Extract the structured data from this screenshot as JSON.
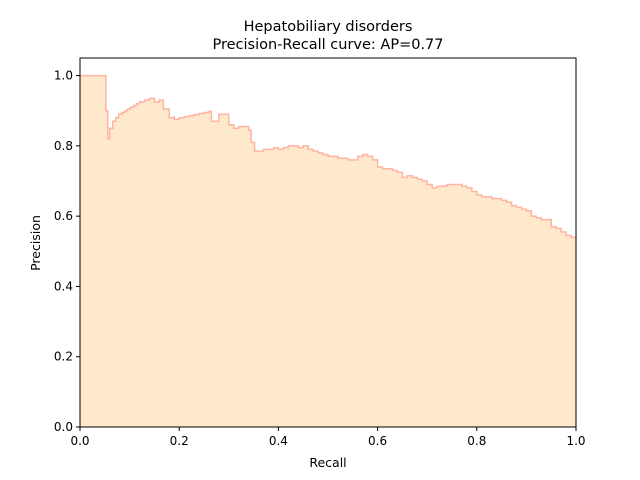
{
  "chart_data": {
    "type": "area",
    "title": "Hepatobiliary disorders",
    "subtitle": "Precision-Recall curve: AP=0.77",
    "xlabel": "Recall",
    "ylabel": "Precision",
    "xlim": [
      0.0,
      1.0
    ],
    "ylim": [
      0.0,
      1.05
    ],
    "xticks": [
      "0.0",
      "0.2",
      "0.4",
      "0.6",
      "0.8",
      "1.0"
    ],
    "yticks": [
      "0.0",
      "0.2",
      "0.4",
      "0.6",
      "0.8",
      "1.0"
    ],
    "grid": false,
    "legend": "none",
    "step": "post",
    "fill_color": "#ffe9cc",
    "line_color": "#ffb3a3",
    "series": [
      {
        "x": [
          0.0,
          0.052,
          0.052,
          0.056,
          0.056,
          0.06,
          0.06,
          0.066,
          0.066,
          0.072,
          0.078,
          0.084,
          0.09,
          0.096,
          0.102,
          0.108,
          0.114,
          0.12,
          0.13,
          0.14,
          0.15,
          0.16,
          0.168,
          0.168,
          0.18,
          0.18,
          0.19,
          0.19,
          0.2,
          0.2,
          0.21,
          0.22,
          0.23,
          0.24,
          0.25,
          0.26,
          0.265,
          0.265,
          0.28,
          0.28,
          0.3,
          0.3,
          0.31,
          0.31,
          0.32,
          0.32,
          0.34,
          0.34,
          0.345,
          0.345,
          0.352,
          0.352,
          0.37,
          0.39,
          0.4,
          0.41,
          0.42,
          0.43,
          0.44,
          0.45,
          0.46,
          0.47,
          0.48,
          0.49,
          0.5,
          0.51,
          0.52,
          0.53,
          0.54,
          0.55,
          0.56,
          0.57,
          0.58,
          0.59,
          0.6,
          0.61,
          0.62,
          0.63,
          0.64,
          0.65,
          0.66,
          0.67,
          0.68,
          0.69,
          0.7,
          0.71,
          0.72,
          0.73,
          0.74,
          0.75,
          0.76,
          0.77,
          0.78,
          0.79,
          0.8,
          0.81,
          0.82,
          0.83,
          0.84,
          0.85,
          0.86,
          0.87,
          0.88,
          0.89,
          0.9,
          0.91,
          0.92,
          0.93,
          0.94,
          0.95,
          0.96,
          0.97,
          0.98,
          0.99,
          1.0
        ],
        "y": [
          1.0,
          1.0,
          0.9,
          0.9,
          0.82,
          0.84,
          0.85,
          0.86,
          0.87,
          0.88,
          0.89,
          0.895,
          0.9,
          0.905,
          0.91,
          0.915,
          0.92,
          0.925,
          0.93,
          0.935,
          0.925,
          0.93,
          0.93,
          0.905,
          0.905,
          0.88,
          0.885,
          0.875,
          0.88,
          0.88,
          0.883,
          0.886,
          0.889,
          0.892,
          0.895,
          0.898,
          0.89,
          0.87,
          0.87,
          0.89,
          0.89,
          0.86,
          0.86,
          0.85,
          0.85,
          0.855,
          0.855,
          0.845,
          0.845,
          0.81,
          0.81,
          0.785,
          0.79,
          0.795,
          0.79,
          0.795,
          0.8,
          0.8,
          0.795,
          0.8,
          0.79,
          0.785,
          0.78,
          0.775,
          0.77,
          0.77,
          0.765,
          0.765,
          0.76,
          0.76,
          0.77,
          0.775,
          0.77,
          0.76,
          0.74,
          0.735,
          0.735,
          0.73,
          0.725,
          0.71,
          0.715,
          0.71,
          0.705,
          0.7,
          0.69,
          0.68,
          0.685,
          0.685,
          0.69,
          0.69,
          0.69,
          0.685,
          0.68,
          0.67,
          0.66,
          0.655,
          0.655,
          0.65,
          0.65,
          0.645,
          0.64,
          0.63,
          0.625,
          0.62,
          0.615,
          0.6,
          0.595,
          0.59,
          0.59,
          0.57,
          0.565,
          0.555,
          0.545,
          0.54,
          0.535
        ]
      }
    ]
  }
}
